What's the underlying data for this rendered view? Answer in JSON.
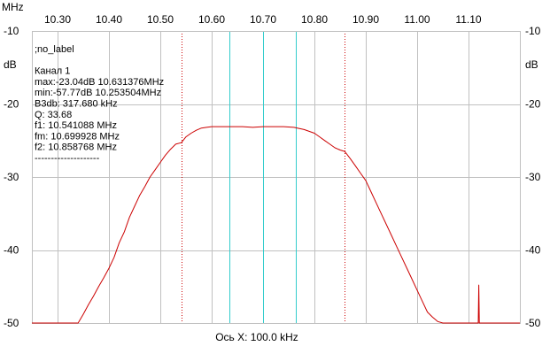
{
  "chart_data": {
    "type": "line",
    "x_unit": "MHz",
    "y_unit": "dB",
    "xlim": [
      10.25,
      11.2
    ],
    "ylim": [
      -50,
      -10
    ],
    "x_ticks": [
      10.3,
      10.4,
      10.5,
      10.6,
      10.7,
      10.8,
      10.9,
      11.0,
      11.1
    ],
    "x_tick_labels": [
      "10.30",
      "10.40",
      "10.50",
      "10.60",
      "10.70",
      "10.80",
      "10.90",
      "11.00",
      "11.10"
    ],
    "y_ticks": [
      -10,
      -20,
      -30,
      -40,
      -50
    ],
    "y_tick_labels": [
      "-10",
      "-20",
      "-30",
      "-40",
      "-50"
    ],
    "xlabel": "Ось X: 100.0 kHz",
    "grid": true,
    "grid_color": "#c0c0c0",
    "plot_border_color": "#c0c0c0",
    "series": [
      {
        "color": "#cc0000",
        "x": [
          10.25,
          10.34,
          10.35,
          10.36,
          10.37,
          10.38,
          10.39,
          10.4,
          10.41,
          10.42,
          10.43,
          10.44,
          10.45,
          10.46,
          10.47,
          10.48,
          10.49,
          10.5,
          10.51,
          10.52,
          10.53,
          10.541,
          10.55,
          10.56,
          10.57,
          10.58,
          10.59,
          10.6,
          10.62,
          10.64,
          10.66,
          10.68,
          10.7,
          10.72,
          10.74,
          10.76,
          10.78,
          10.8,
          10.81,
          10.82,
          10.83,
          10.84,
          10.85,
          10.859,
          10.87,
          10.88,
          10.89,
          10.9,
          10.91,
          10.92,
          10.93,
          10.94,
          10.95,
          10.96,
          10.97,
          10.98,
          10.99,
          11.0,
          11.01,
          11.02,
          11.03,
          11.04,
          11.05,
          11.06,
          11.08,
          11.1,
          11.11,
          11.119,
          11.12,
          11.121,
          11.122,
          11.13,
          11.15,
          11.2
        ],
        "y": [
          -50.0,
          -50.0,
          -48.8,
          -47.5,
          -46.3,
          -45.0,
          -43.8,
          -42.5,
          -41.0,
          -39.0,
          -37.5,
          -35.5,
          -34.0,
          -32.5,
          -31.3,
          -30.0,
          -29.0,
          -28.0,
          -27.0,
          -26.2,
          -25.5,
          -25.3,
          -24.5,
          -24.0,
          -23.6,
          -23.3,
          -23.2,
          -23.1,
          -23.1,
          -23.1,
          -23.1,
          -23.2,
          -23.1,
          -23.1,
          -23.1,
          -23.2,
          -23.5,
          -24.0,
          -24.5,
          -25.0,
          -25.5,
          -26.0,
          -26.3,
          -26.5,
          -27.5,
          -28.5,
          -29.5,
          -30.5,
          -32.0,
          -33.5,
          -35.0,
          -36.5,
          -38.0,
          -39.5,
          -41.0,
          -42.5,
          -44.0,
          -45.5,
          -47.0,
          -48.5,
          -49.2,
          -49.8,
          -50.0,
          -50.0,
          -50.0,
          -50.0,
          -50.0,
          -50.0,
          -44.8,
          -50.0,
          -50.0,
          -50.0,
          -50.0,
          -50.0
        ]
      }
    ],
    "markers": [
      {
        "name": "f1",
        "x": 10.541088,
        "style": "dotted",
        "color": "#cc0000"
      },
      {
        "name": "f2",
        "x": 10.858768,
        "style": "dotted",
        "color": "#cc0000"
      },
      {
        "name": "fm",
        "x": 10.699928,
        "style": "solid",
        "color": "#33cccc"
      },
      {
        "name": "cursor-left",
        "x": 10.634,
        "style": "solid",
        "color": "#33cccc"
      },
      {
        "name": "cursor-right",
        "x": 10.764,
        "style": "solid",
        "color": "#33cccc"
      }
    ],
    "info_lines": [
      ";no_label",
      "",
      "Канал 1",
      "max:-23.04dB 10.631376MHz",
      "min:-57.77dB 10.253504MHz",
      "B3db: 317.680 kHz",
      "Q: 33.68",
      "f1: 10.541088 MHz",
      "fm: 10.699928 MHz",
      "f2: 10.858768 MHz",
      "--------------------"
    ]
  }
}
